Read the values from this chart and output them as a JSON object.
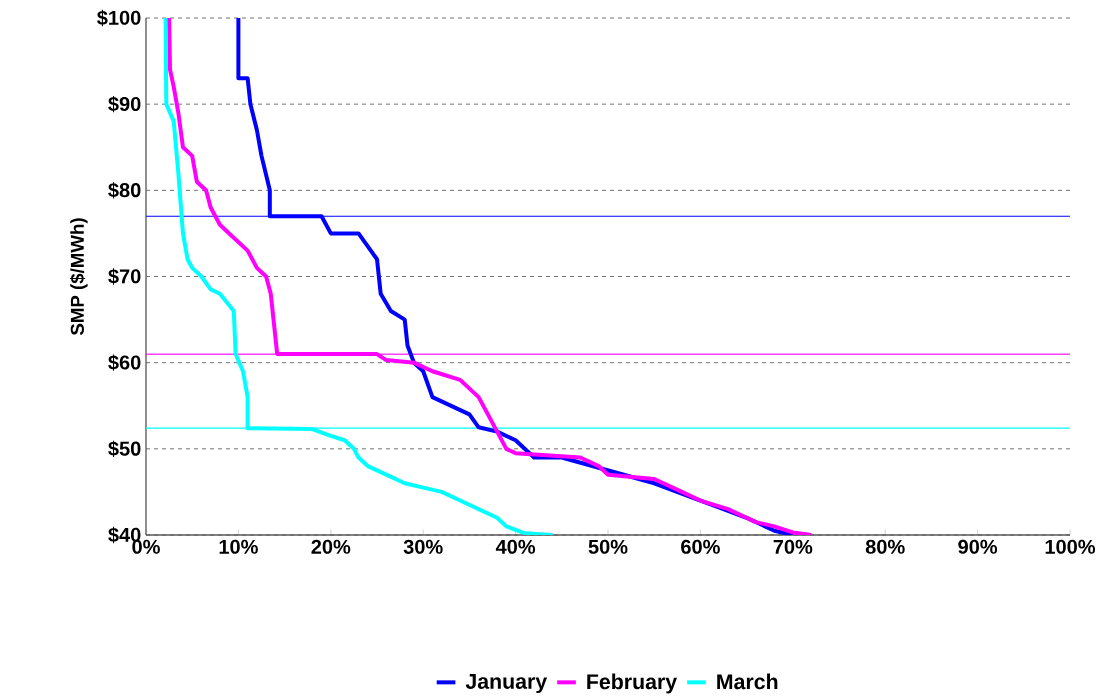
{
  "chart_data": {
    "type": "line",
    "ylabel": "SMP ($/MWh)",
    "xlim": [
      0,
      100
    ],
    "ylim": [
      40,
      100
    ],
    "xticks": [
      {
        "value": 0,
        "label": "0%"
      },
      {
        "value": 10,
        "label": "10%"
      },
      {
        "value": 20,
        "label": "20%"
      },
      {
        "value": 30,
        "label": "30%"
      },
      {
        "value": 40,
        "label": "40%"
      },
      {
        "value": 50,
        "label": "50%"
      },
      {
        "value": 60,
        "label": "60%"
      },
      {
        "value": 70,
        "label": "70%"
      },
      {
        "value": 80,
        "label": "80%"
      },
      {
        "value": 90,
        "label": "90%"
      },
      {
        "value": 100,
        "label": "100%"
      }
    ],
    "yticks": [
      {
        "value": 40,
        "label": "$40"
      },
      {
        "value": 50,
        "label": "$50"
      },
      {
        "value": 60,
        "label": "$60"
      },
      {
        "value": 70,
        "label": "$70"
      },
      {
        "value": 80,
        "label": "$80"
      },
      {
        "value": 90,
        "label": "$90"
      },
      {
        "value": 100,
        "label": "$100"
      }
    ],
    "grid": "y",
    "legend": "bottom",
    "marker": "none",
    "line_style": "solid",
    "series": [
      {
        "name": "January",
        "color": "#0000ff",
        "x": [
          10,
          10,
          11,
          11.3,
          12,
          12.5,
          13.4,
          13.4,
          19,
          20,
          23,
          25,
          25.4,
          26.5,
          28,
          28.3,
          29,
          30,
          31,
          33,
          35,
          36,
          38,
          40,
          42,
          45,
          50,
          55,
          60,
          65,
          68,
          70
        ],
        "values": [
          100,
          93,
          93,
          90,
          87,
          84,
          80,
          77,
          77,
          75,
          75,
          72,
          68,
          66,
          65,
          62,
          60,
          59,
          56,
          55,
          54,
          52.5,
          52,
          51,
          49,
          49,
          47.5,
          46,
          44,
          42,
          40.5,
          40
        ]
      },
      {
        "name": "February",
        "color": "#ff00ff",
        "x": [
          2.5,
          2.6,
          3,
          3.5,
          4,
          5,
          5.5,
          6.5,
          7,
          8,
          9,
          10,
          11,
          12,
          13,
          13.5,
          14.2,
          25,
          26,
          29,
          31,
          34,
          36,
          37,
          38,
          39,
          40,
          47,
          49,
          50,
          55,
          58,
          60,
          63,
          66,
          68,
          70,
          72
        ],
        "values": [
          100,
          94,
          92,
          89,
          85,
          84,
          81,
          80,
          78,
          76,
          75,
          74,
          73,
          71,
          70,
          68,
          61,
          61,
          60.3,
          60,
          59,
          58,
          56,
          54,
          52,
          50,
          49.5,
          49,
          48,
          47,
          46.5,
          45,
          44,
          43,
          41.5,
          41,
          40.3,
          40
        ]
      },
      {
        "name": "March",
        "color": "#00ffff",
        "x": [
          2.1,
          2.2,
          3,
          3.5,
          4,
          4.5,
          5,
          6,
          7,
          8,
          9.5,
          9.7,
          10.5,
          11,
          11,
          18,
          20,
          21.5,
          22.5,
          23,
          24,
          25,
          26,
          28,
          30,
          32,
          34,
          36,
          38,
          39,
          41,
          44
        ],
        "values": [
          100,
          90,
          88,
          82,
          75,
          72,
          71,
          70,
          68.5,
          68,
          66,
          61,
          59,
          56,
          52.4,
          52.3,
          51.5,
          51,
          50,
          49,
          48,
          47.5,
          47,
          46,
          45.5,
          45,
          44,
          43,
          42,
          41,
          40.2,
          40
        ]
      }
    ],
    "ref_lines": [
      {
        "axis": "y",
        "value": 77,
        "color": "#0000ff"
      },
      {
        "axis": "y",
        "value": 61,
        "color": "#ff00ff"
      },
      {
        "axis": "y",
        "value": 52.4,
        "color": "#00ffff"
      }
    ]
  }
}
